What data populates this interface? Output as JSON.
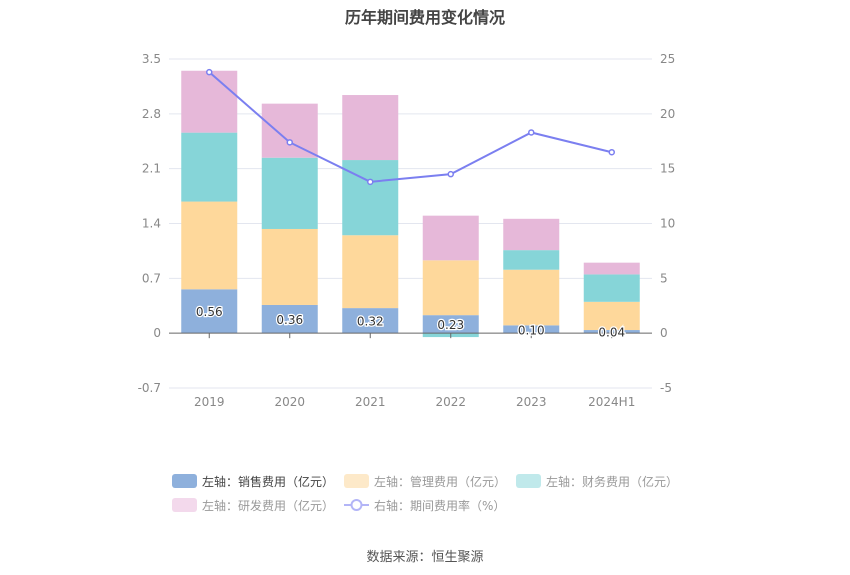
{
  "chart_data": {
    "type": "bar",
    "title": "历年期间费用变化情况",
    "categories": [
      "2019",
      "2020",
      "2021",
      "2022",
      "2023",
      "2024H1"
    ],
    "left_axis": {
      "ylim": [
        -0.7,
        3.5
      ],
      "ticks": [
        "3.5",
        "2.8",
        "2.1",
        "1.4",
        "0.7",
        "0",
        "-0.7"
      ],
      "tick_values": [
        3.5,
        2.8,
        2.1,
        1.4,
        0.7,
        0,
        -0.7
      ]
    },
    "right_axis": {
      "ylim": [
        -5,
        25
      ],
      "ticks": [
        "25",
        "20",
        "15",
        "10",
        "5",
        "0",
        "-5"
      ],
      "tick_values": [
        25,
        20,
        15,
        10,
        5,
        0,
        -5
      ]
    },
    "grid": true,
    "stacked": true,
    "series": [
      {
        "name": "左轴：销售费用（亿元）",
        "axis": "left",
        "type": "bar",
        "color": "#8eb0dc",
        "values": [
          0.56,
          0.36,
          0.32,
          0.23,
          0.1,
          0.04
        ],
        "labels": [
          "0.56",
          "0.36",
          "0.32",
          "0.23",
          "0.10",
          "0.04"
        ]
      },
      {
        "name": "左轴：管理费用（亿元）",
        "axis": "left",
        "type": "bar",
        "color": "#fed89b",
        "values": [
          1.12,
          0.97,
          0.93,
          0.7,
          0.71,
          0.36
        ]
      },
      {
        "name": "左轴：财务费用（亿元）",
        "axis": "left",
        "type": "bar",
        "color": "#86d5d8",
        "values": [
          0.88,
          0.91,
          0.96,
          -0.05,
          0.25,
          0.35
        ]
      },
      {
        "name": "左轴：研发费用（亿元）",
        "axis": "left",
        "type": "bar",
        "color": "#e6b8d9",
        "values": [
          0.79,
          0.69,
          0.83,
          0.57,
          0.4,
          0.15
        ]
      },
      {
        "name": "右轴：期间费用率（%）",
        "axis": "right",
        "type": "line",
        "color": "#7b7ff0",
        "values": [
          23.8,
          17.4,
          13.8,
          14.5,
          18.3,
          16.5
        ]
      }
    ],
    "legend_position": "bottom",
    "legend_swatch_colors": [
      "#8eb0dc",
      "#fde9c9",
      "#c0e9eb",
      "#f3d9ec",
      "#b3b5f7"
    ]
  },
  "source": "数据来源：恒生聚源"
}
